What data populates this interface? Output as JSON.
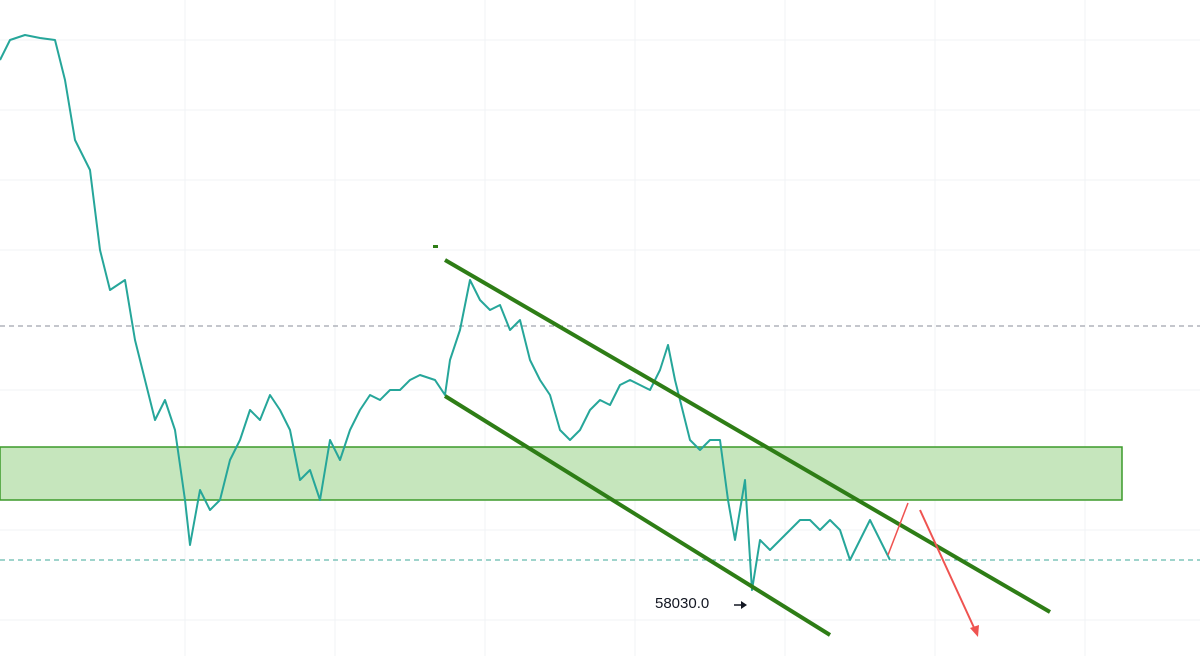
{
  "price_label": "58030.0"
}
